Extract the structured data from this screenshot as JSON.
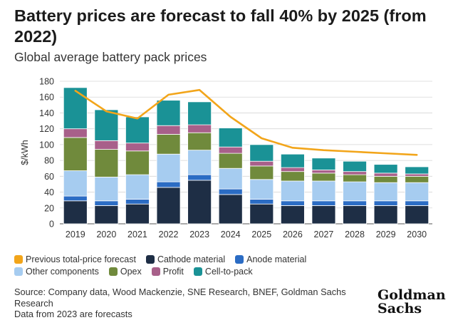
{
  "title": "Battery prices are forecast to fall 40% by 2025 (from 2022)",
  "subtitle": "Global average battery pack prices",
  "source_lines": [
    "Source: Company data, Wood Mackenzie, SNE Research, BNEF, Goldman Sachs Research",
    "Data from 2023 are forecasts"
  ],
  "logo": {
    "line1": "Goldman",
    "line2": "Sachs"
  },
  "chart_data": {
    "type": "bar",
    "stacked": true,
    "categories": [
      "2019",
      "2020",
      "2021",
      "2022",
      "2023",
      "2024",
      "2025",
      "2026",
      "2027",
      "2028",
      "2029",
      "2030"
    ],
    "ylabel": "$/kWh",
    "ylim": [
      0,
      180
    ],
    "yticks": [
      0,
      20,
      40,
      60,
      80,
      100,
      120,
      140,
      160,
      180
    ],
    "grid": true,
    "series": [
      {
        "name": "Cathode material",
        "color": "#1e2e45",
        "values": [
          29,
          23,
          25,
          46,
          55,
          37,
          25,
          23,
          23,
          23,
          23,
          23
        ]
      },
      {
        "name": "Anode material",
        "color": "#2b6cc4",
        "values": [
          6,
          6,
          6,
          7,
          7,
          7,
          6,
          6,
          6,
          6,
          6,
          6
        ]
      },
      {
        "name": "Other components",
        "color": "#a6ccf0",
        "values": [
          32,
          30,
          31,
          35,
          31,
          26,
          25,
          25,
          25,
          24,
          23,
          23
        ]
      },
      {
        "name": "Opex",
        "color": "#708a3c",
        "values": [
          42,
          35,
          30,
          25,
          22,
          19,
          17,
          12,
          10,
          9,
          8,
          8
        ]
      },
      {
        "name": "Profit",
        "color": "#a8608a",
        "values": [
          11,
          11,
          10,
          11,
          10,
          8,
          6,
          5,
          4,
          4,
          4,
          3
        ]
      },
      {
        "name": "Cell-to-pack",
        "color": "#1a9296",
        "values": [
          52,
          39,
          33,
          32,
          29,
          24,
          21,
          17,
          15,
          13,
          11,
          9
        ]
      }
    ],
    "line_series": {
      "name": "Previous total-price forecast",
      "color": "#f2a51a",
      "values": [
        168,
        142,
        133,
        163,
        169,
        135,
        108,
        96,
        93,
        91,
        89,
        87
      ]
    },
    "legend_rows": [
      [
        "Previous total-price forecast",
        "Cathode material",
        "Anode material"
      ],
      [
        "Other components",
        "Opex",
        "Profit",
        "Cell-to-pack"
      ]
    ]
  }
}
